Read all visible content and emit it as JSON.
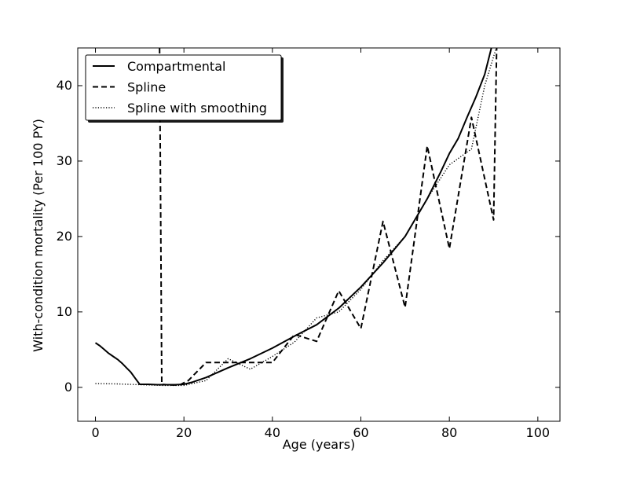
{
  "chart_data": {
    "type": "line",
    "title": "",
    "xlabel": "Age (years)",
    "ylabel": "With-condition mortality (Per 100 PY)",
    "xlim": [
      -4,
      105
    ],
    "ylim": [
      -4.5,
      45
    ],
    "x_ticks": [
      0,
      20,
      40,
      60,
      80,
      100
    ],
    "y_ticks": [
      0,
      10,
      20,
      30,
      40
    ],
    "grid": false,
    "legend_position": "top-left",
    "series": [
      {
        "name": "Compartmental",
        "style": "solid",
        "color": "#000000",
        "points": [
          [
            0,
            5.9
          ],
          [
            1,
            5.5
          ],
          [
            2,
            5.0
          ],
          [
            3,
            4.5
          ],
          [
            4,
            4.1
          ],
          [
            5,
            3.7
          ],
          [
            6,
            3.2
          ],
          [
            7,
            2.6
          ],
          [
            8,
            2.0
          ],
          [
            9,
            1.2
          ],
          [
            10,
            0.4
          ],
          [
            12,
            0.4
          ],
          [
            14,
            0.35
          ],
          [
            16,
            0.35
          ],
          [
            18,
            0.35
          ],
          [
            20,
            0.4
          ],
          [
            22,
            0.7
          ],
          [
            25,
            1.3
          ],
          [
            30,
            2.6
          ],
          [
            35,
            3.8
          ],
          [
            40,
            5.2
          ],
          [
            45,
            6.8
          ],
          [
            50,
            8.3
          ],
          [
            55,
            10.5
          ],
          [
            60,
            13.3
          ],
          [
            65,
            16.5
          ],
          [
            70,
            20.0
          ],
          [
            75,
            25.0
          ],
          [
            78,
            28.5
          ],
          [
            80,
            31.0
          ],
          [
            82,
            33.0
          ],
          [
            84,
            35.8
          ],
          [
            86,
            38.5
          ],
          [
            88,
            41.5
          ],
          [
            89.5,
            45.0
          ]
        ]
      },
      {
        "name": "Spline",
        "style": "dashed",
        "color": "#000000",
        "points": [
          [
            14.5,
            45.0
          ],
          [
            15,
            0.4
          ],
          [
            17,
            0.3
          ],
          [
            19,
            0.3
          ],
          [
            21,
            0.9
          ],
          [
            25,
            3.3
          ],
          [
            30,
            3.3
          ],
          [
            35,
            3.3
          ],
          [
            40,
            3.3
          ],
          [
            45,
            7.0
          ],
          [
            50,
            6.1
          ],
          [
            55,
            12.8
          ],
          [
            60,
            7.8
          ],
          [
            65,
            22.0
          ],
          [
            70,
            10.6
          ],
          [
            75,
            32.0
          ],
          [
            80,
            18.4
          ],
          [
            85,
            35.8
          ],
          [
            90,
            22.2
          ],
          [
            90.7,
            45.0
          ]
        ]
      },
      {
        "name": "Spline with smoothing",
        "style": "dotted",
        "color": "#000000",
        "points": [
          [
            0,
            0.5
          ],
          [
            5,
            0.45
          ],
          [
            10,
            0.35
          ],
          [
            15,
            0.25
          ],
          [
            20,
            0.25
          ],
          [
            25,
            0.9
          ],
          [
            30,
            3.8
          ],
          [
            35,
            2.4
          ],
          [
            40,
            4.1
          ],
          [
            45,
            6.0
          ],
          [
            50,
            9.2
          ],
          [
            55,
            10.0
          ],
          [
            60,
            13.0
          ],
          [
            65,
            16.8
          ],
          [
            70,
            20.0
          ],
          [
            75,
            25.0
          ],
          [
            80,
            29.5
          ],
          [
            85,
            31.6
          ],
          [
            88,
            40.0
          ],
          [
            90.5,
            44.8
          ]
        ]
      }
    ]
  }
}
